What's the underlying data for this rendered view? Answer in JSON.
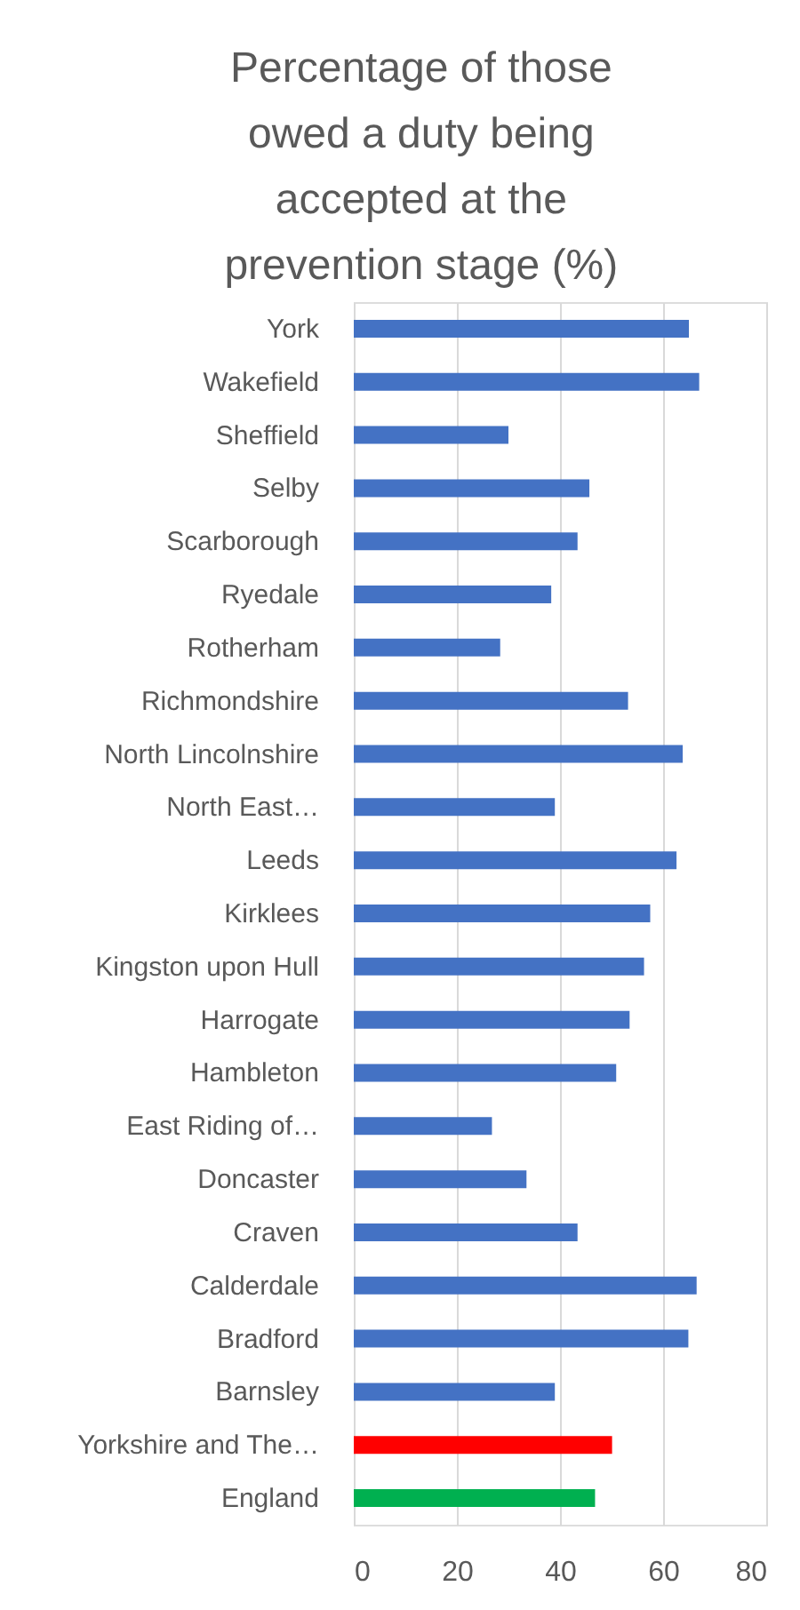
{
  "chart_data": {
    "type": "bar",
    "orientation": "horizontal",
    "title": "Percentage of those owed a duty being accepted at the prevention stage (%)",
    "categories": [
      "York",
      "Wakefield",
      "Sheffield",
      "Selby",
      "Scarborough",
      "Ryedale",
      "Rotherham",
      "Richmondshire",
      "North Lincolnshire",
      "North East…",
      "Leeds",
      "Kirklees",
      "Kingston upon Hull",
      "Harrogate",
      "Hambleton",
      "East Riding of…",
      "Doncaster",
      "Craven",
      "Calderdale",
      "Bradford",
      "Barnsley",
      "Yorkshire and The…",
      "England"
    ],
    "values": [
      65,
      67,
      30,
      45.7,
      43.4,
      38.3,
      28.4,
      53.2,
      63.8,
      39,
      62.6,
      57.5,
      56.3,
      53.5,
      50.9,
      26.8,
      33.5,
      43.4,
      66.5,
      64.9,
      39,
      50.1,
      46.8
    ],
    "colors": [
      "#4472c4",
      "#4472c4",
      "#4472c4",
      "#4472c4",
      "#4472c4",
      "#4472c4",
      "#4472c4",
      "#4472c4",
      "#4472c4",
      "#4472c4",
      "#4472c4",
      "#4472c4",
      "#4472c4",
      "#4472c4",
      "#4472c4",
      "#4472c4",
      "#4472c4",
      "#4472c4",
      "#4472c4",
      "#4472c4",
      "#4472c4",
      "#ff0000",
      "#00b050"
    ],
    "xlim": [
      0,
      80
    ],
    "xticks": [
      0,
      20,
      40,
      60,
      80
    ],
    "grid": "x"
  }
}
